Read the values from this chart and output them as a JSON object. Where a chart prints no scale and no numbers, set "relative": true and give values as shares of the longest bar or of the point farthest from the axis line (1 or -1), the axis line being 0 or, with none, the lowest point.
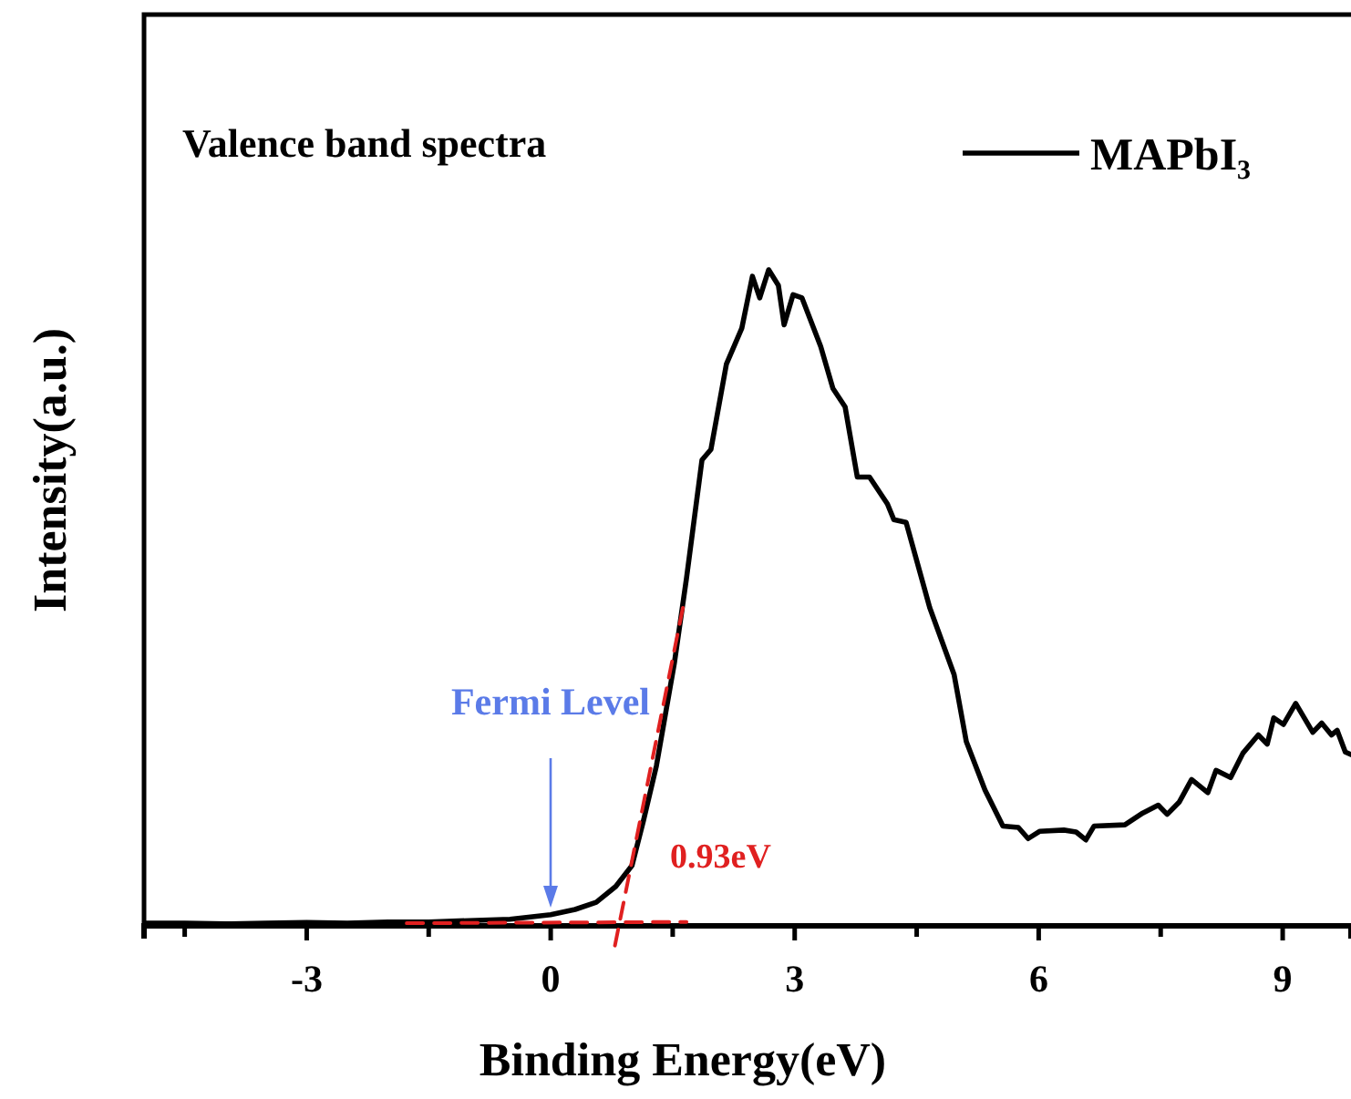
{
  "chart_data": {
    "type": "line",
    "relative": true,
    "xlabel": "Binding Energy(eV)",
    "ylabel": "Intensity(a.u.)",
    "xlim": [
      -5,
      9.84
    ],
    "xticks": [
      {
        "value": -4.5,
        "label": null
      },
      -3,
      {
        "value": -1.5,
        "label": null
      },
      0,
      {
        "value": 1.5,
        "label": null
      },
      3,
      {
        "value": 4.5,
        "label": null
      },
      6,
      {
        "value": 7.5,
        "label": null
      },
      9
    ],
    "legend": "top right",
    "marker": "none",
    "line_style": "solid",
    "series": [
      {
        "name": "MAPbI₃",
        "color": "#000000",
        "x": [
          -5,
          -4.5,
          -4,
          -3.5,
          -3,
          -2.5,
          -2,
          -1.5,
          -1,
          -0.5,
          0,
          0.3,
          0.56,
          0.8,
          1.0,
          1.14,
          1.3,
          1.52,
          1.67,
          1.86,
          1.97,
          2.16,
          2.35,
          2.48,
          2.57,
          2.68,
          2.8,
          2.87,
          2.98,
          3.09,
          3.32,
          3.47,
          3.62,
          3.77,
          3.92,
          4.14,
          4.22,
          4.37,
          4.66,
          4.96,
          5.11,
          5.34,
          5.56,
          5.75,
          5.87,
          6.01,
          6.31,
          6.46,
          6.58,
          6.68,
          7.06,
          7.28,
          7.47,
          7.58,
          7.73,
          7.88,
          8.08,
          8.18,
          8.36,
          8.51,
          8.7,
          8.81,
          8.89,
          9.01,
          9.16,
          9.37,
          9.48,
          9.6,
          9.67,
          9.77,
          9.84
        ],
        "values": [
          0.004,
          0.004,
          0.003,
          0.004,
          0.005,
          0.004,
          0.006,
          0.006,
          0.008,
          0.01,
          0.017,
          0.025,
          0.036,
          0.06,
          0.092,
          0.16,
          0.244,
          0.4,
          0.53,
          0.71,
          0.726,
          0.856,
          0.911,
          0.99,
          0.957,
          1,
          0.976,
          0.916,
          0.962,
          0.957,
          0.883,
          0.819,
          0.791,
          0.684,
          0.684,
          0.643,
          0.619,
          0.615,
          0.485,
          0.383,
          0.281,
          0.207,
          0.152,
          0.15,
          0.133,
          0.144,
          0.146,
          0.143,
          0.131,
          0.152,
          0.154,
          0.172,
          0.184,
          0.17,
          0.189,
          0.223,
          0.203,
          0.237,
          0.226,
          0.263,
          0.291,
          0.277,
          0.317,
          0.307,
          0.339,
          0.295,
          0.309,
          0.291,
          0.298,
          0.265,
          0.261
        ]
      },
      {
        "color": "#e02020",
        "line_style": "dashed",
        "x": [
          0.79,
          1.64
        ],
        "values": [
          -0.03,
          0.494
        ]
      },
      {
        "color": "#e02020",
        "line_style": "dashed",
        "x": [
          -1.77,
          1.67
        ],
        "values": [
          0.004,
          0.006
        ]
      }
    ],
    "annotations": [
      "Valence band spectra",
      "Fermi Level",
      {
        "text": "0.93eV",
        "x": 0.93,
        "y": 0
      }
    ]
  }
}
